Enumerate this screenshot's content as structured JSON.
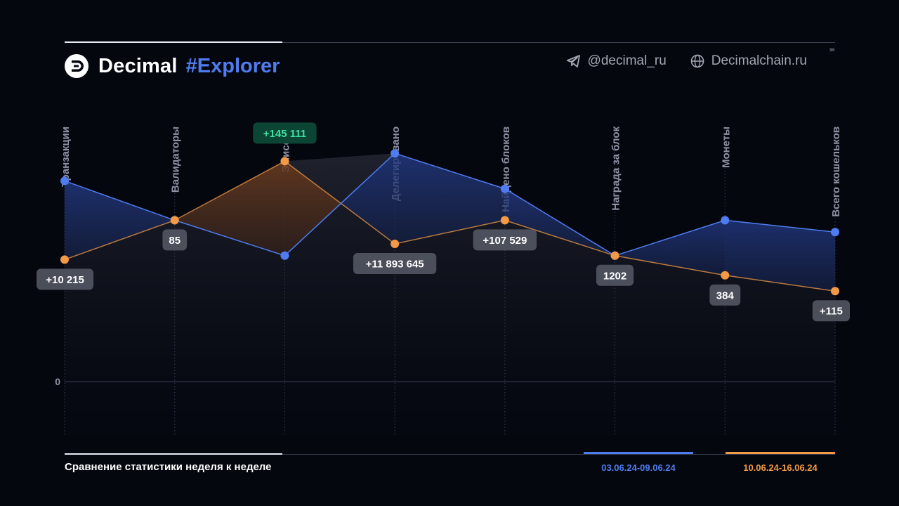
{
  "header": {
    "brand": "Decimal",
    "hashtag": "#Explorer",
    "telegram": "@decimal_ru",
    "website": "Decimalchain.ru",
    "arrows": "››››"
  },
  "footer": {
    "title": "Сравнение статистики неделя к неделе"
  },
  "colors": {
    "background": "#05070f",
    "series_week1": "#4f7cf0",
    "series_week2": "#f29a45",
    "positive_highlight": "#3ee0a1"
  },
  "chart_data": {
    "type": "line",
    "categories": [
      "Транзакции",
      "Валидаторы",
      "Эмиссия",
      "Делегировано",
      "Найдено блоков",
      "Награда за блок",
      "Монеты",
      "Всего кошельков"
    ],
    "ytick_labels": [
      "0"
    ],
    "series": [
      {
        "name": "03.06.24-09.06.24",
        "color": "#4f7cf0",
        "relative_values": [
          0.51,
          0.41,
          0.32,
          0.58,
          0.49,
          0.32,
          0.41,
          0.38
        ]
      },
      {
        "name": "10.06.24-16.06.24",
        "color": "#f29a45",
        "relative_values": [
          0.31,
          0.41,
          0.56,
          0.35,
          0.41,
          0.32,
          0.27,
          0.23
        ]
      }
    ],
    "data_labels": [
      "+10 215",
      "85",
      "+145 111",
      "+11 893 645",
      "+107 529",
      "1202",
      "384",
      "+115"
    ],
    "highlighted_label_index": 2,
    "grid": "vertical dotted per category",
    "legend_placement": "bottom-right"
  }
}
